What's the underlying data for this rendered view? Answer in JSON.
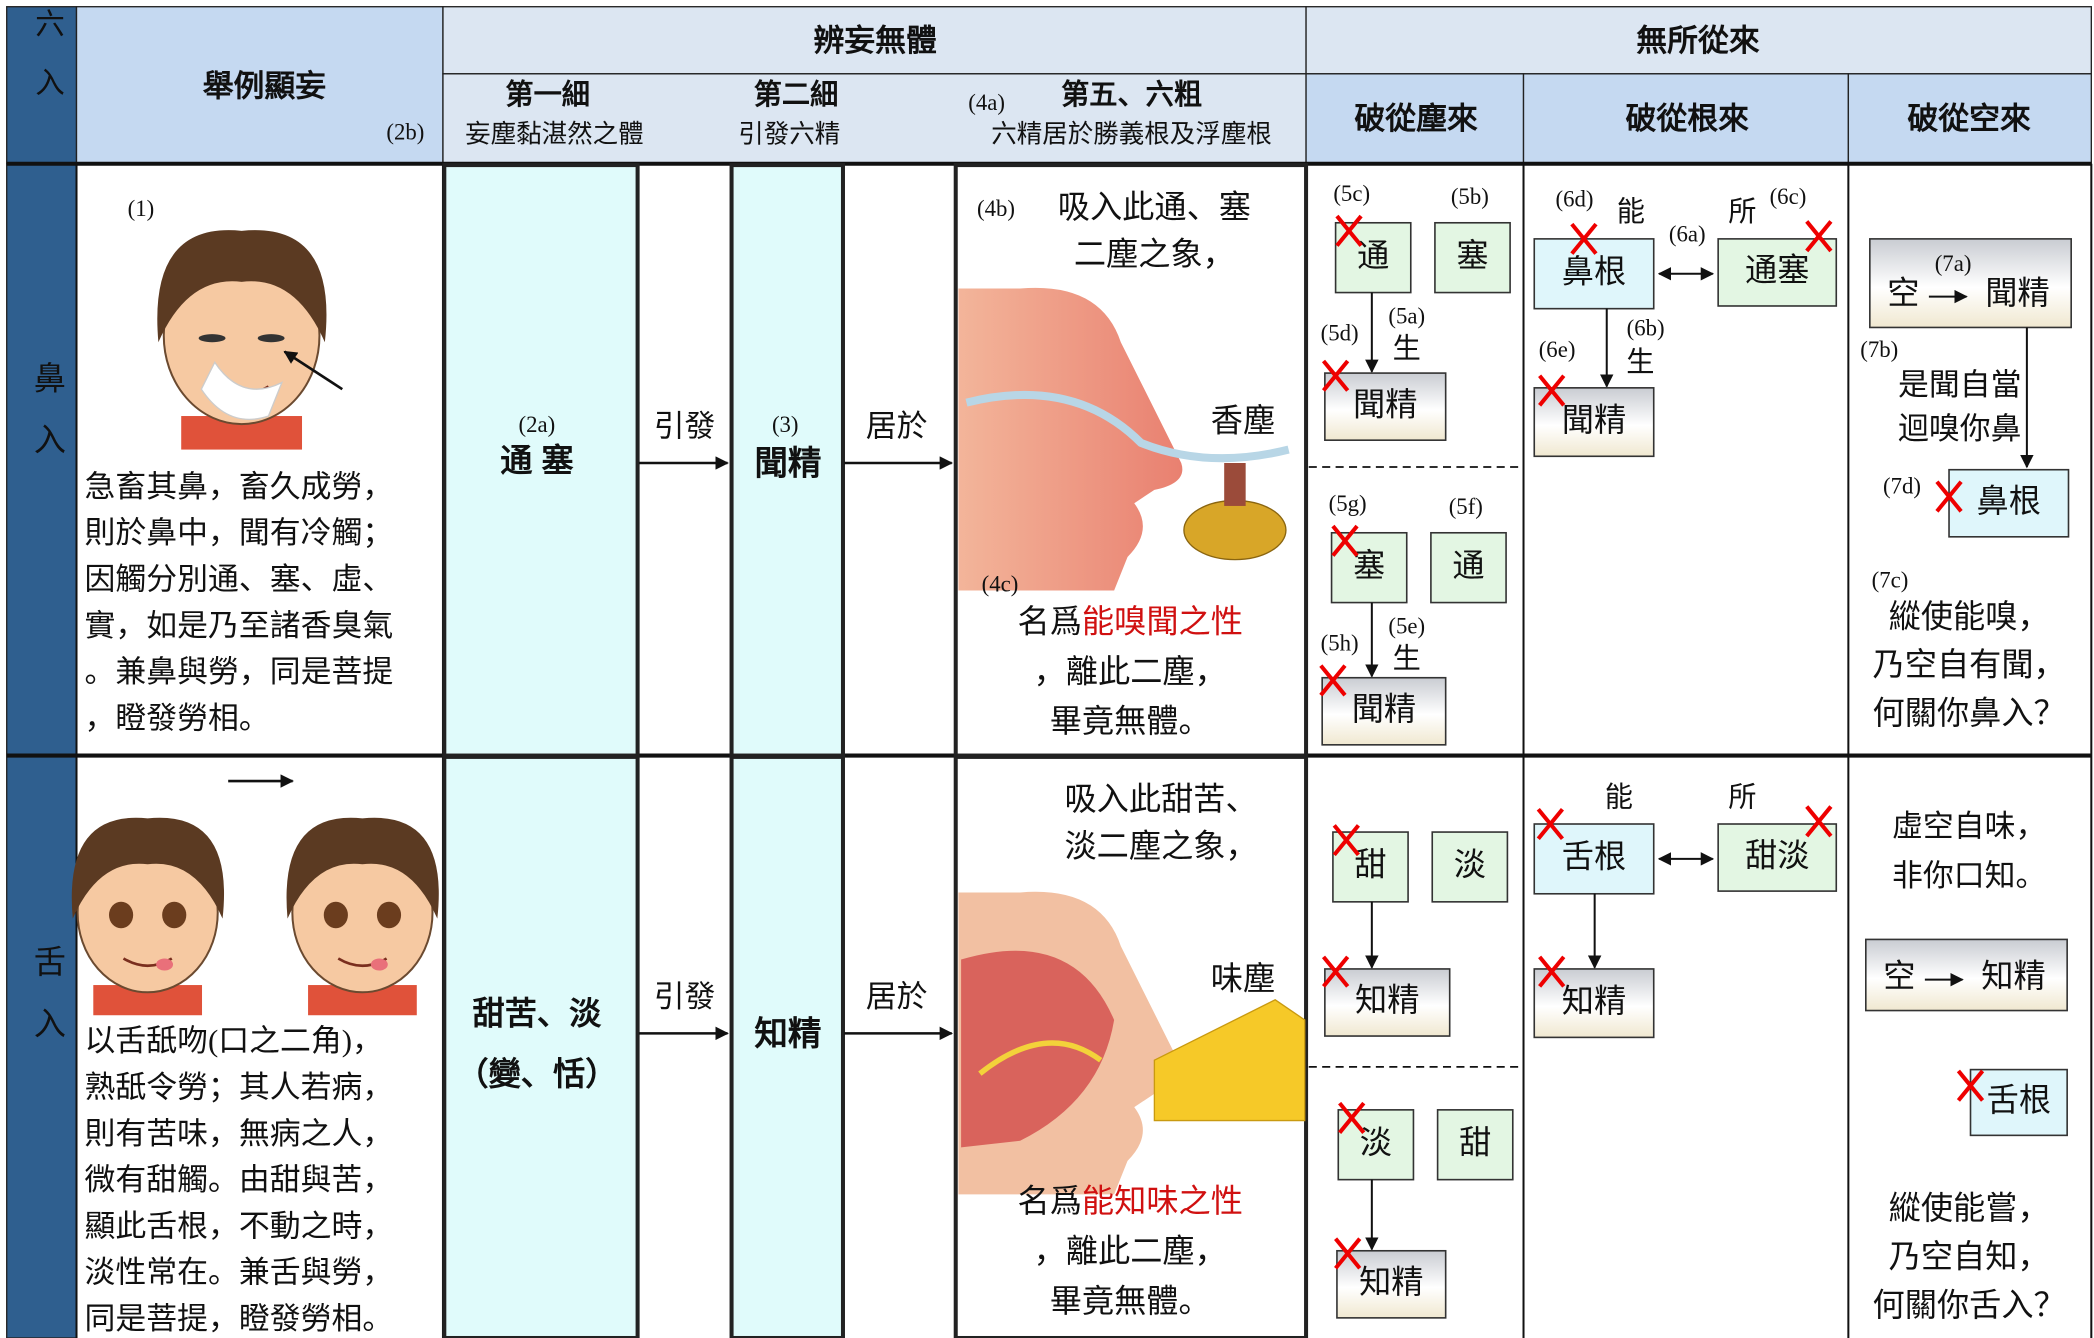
{
  "header": {
    "six_entries": "六入",
    "example": "舉例顯妄",
    "example_tag": "(2b)",
    "group1": "辨妄無體",
    "group2": "無所從來",
    "col1_title": "第一細",
    "col1_sub": "妄塵黏湛然之體",
    "col2_title": "第二細",
    "col2_sub": "引發六精",
    "col3_tag": "(4a)",
    "col3_title": "第五、六粗",
    "col3_sub": "六精居於勝義根及浮塵根",
    "dust": "破從塵來",
    "root": "破從根來",
    "space": "破從空來"
  },
  "rows": [
    {
      "name": "鼻入",
      "example_tag": "(1)",
      "example_lines": [
        "急畜其鼻，畜久成勞，",
        "則於鼻中，聞有冷觸；",
        "因觸分別通、塞、虛、",
        "實，如是乃至諸香臭氣",
        "。兼鼻與勞，同是菩提",
        "，瞪發勞相。"
      ],
      "source_tag": "(2a)",
      "source_lines": [
        "通 塞"
      ],
      "arrow1": "引發",
      "essence_tag": "(3)",
      "essence": "聞精",
      "arrow2": "居於",
      "sense": {
        "tag_top": "(4b)",
        "lines_top": [
          "吸入此通、塞",
          "二塵之象，"
        ],
        "dust_label": "香塵",
        "tag_bottom": "(4c)",
        "prefix": "名爲",
        "highlight": "能嗅聞之性",
        "lines_bottom": [
          "，離此二塵，",
          "畢竟無體。"
        ]
      },
      "dust": {
        "upper": {
          "crossed_tag": "(5c)",
          "crossed": "通",
          "other_tag": "(5b)",
          "other": "塞",
          "result_tag": "(5d)",
          "arise_tag": "(5a)",
          "arise": "生",
          "result": "聞精"
        },
        "lower": {
          "crossed_tag": "(5g)",
          "crossed": "塞",
          "other_tag": "(5f)",
          "other": "通",
          "result_tag": "(5h)",
          "arise_tag": "(5e)",
          "arise": "生",
          "result": "聞精"
        }
      },
      "root": {
        "able_tag": "(6d)",
        "able": "能",
        "object": "所",
        "object_tag": "(6c)",
        "organ": "鼻根",
        "link_tag": "(6a)",
        "dust": "通塞",
        "result_tag": "(6e)",
        "arise_tag": "(6b)",
        "arise": "生",
        "result": "聞精"
      },
      "space": {
        "box_tag": "(7a)",
        "from": "空",
        "to": "聞精",
        "note_tag": "(7b)",
        "note_lines": [
          "是聞自當",
          "迴嗅你鼻"
        ],
        "organ_tag": "(7d)",
        "organ": "鼻根",
        "concl_tag": "(7c)",
        "concl_lines": [
          "縱使能嗅，",
          "乃空自有聞，",
          "何關你鼻入？"
        ]
      }
    },
    {
      "name": "舌入",
      "example_lines": [
        "以舌舐吻(口之二角)，",
        "熟舐令勞；其人若病，",
        "則有苦味，無病之人，",
        "微有甜觸。由甜與苦，",
        "顯此舌根，不動之時，",
        "淡性常在。兼舌與勞，",
        "同是菩提，瞪發勞相。"
      ],
      "source_lines": [
        "甜苦、淡",
        "（變、恬）"
      ],
      "arrow1": "引發",
      "essence": "知精",
      "arrow2": "居於",
      "sense": {
        "lines_top": [
          "吸入此甜苦、",
          "淡二塵之象，"
        ],
        "dust_label": "味塵",
        "prefix": "名爲",
        "highlight": "能知味之性",
        "lines_bottom": [
          "，離此二塵，",
          "畢竟無體。"
        ]
      },
      "dust": {
        "upper": {
          "crossed": "甜",
          "other": "淡",
          "result": "知精"
        },
        "lower": {
          "crossed": "淡",
          "other": "甜",
          "result": "知精"
        }
      },
      "root": {
        "able": "能",
        "object": "所",
        "organ": "舌根",
        "dust": "甜淡",
        "result": "知精"
      },
      "space": {
        "note_lines": [
          "虛空自味，",
          "非你口知。"
        ],
        "from": "空",
        "to": "知精",
        "organ": "舌根",
        "concl_lines": [
          "縱使能嘗，",
          "乃空自知，",
          "何關你舌入？"
        ]
      }
    }
  ]
}
